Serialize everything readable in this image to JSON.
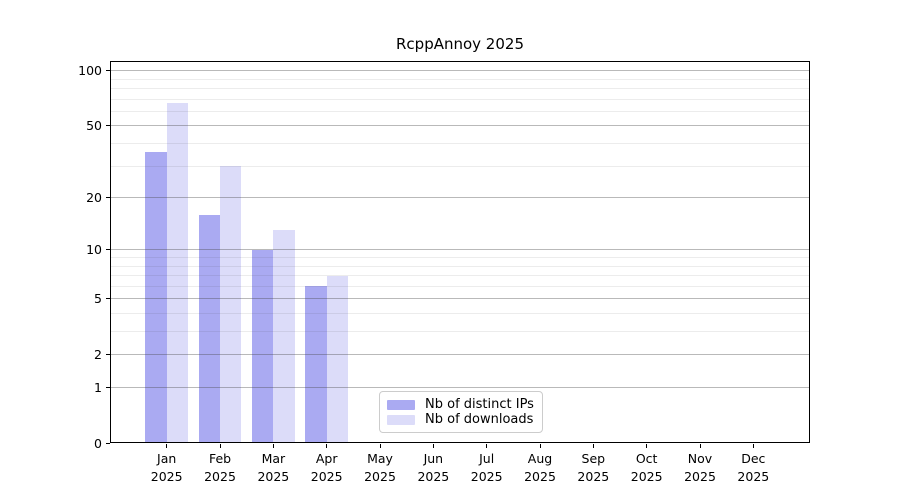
{
  "title": "RcppAnnoy 2025",
  "chart_data": {
    "type": "bar",
    "title": "RcppAnnoy 2025",
    "y_scale": "log1p",
    "categories": [
      "Jan 2025",
      "Feb 2025",
      "Mar 2025",
      "Apr 2025",
      "May 2025",
      "Jun 2025",
      "Jul 2025",
      "Aug 2025",
      "Sep 2025",
      "Oct 2025",
      "Nov 2025",
      "Dec 2025"
    ],
    "series": [
      {
        "name": "Nb of distinct IPs",
        "color": "#aaaaf2",
        "values": [
          36,
          16,
          10,
          6,
          null,
          null,
          null,
          null,
          null,
          null,
          null,
          null
        ]
      },
      {
        "name": "Nb of downloads",
        "color": "#dcdcf9",
        "values": [
          67,
          30,
          13,
          7,
          null,
          null,
          null,
          null,
          null,
          null,
          null,
          null
        ]
      }
    ],
    "y_ticks": [
      100,
      50,
      20,
      10,
      5,
      2,
      1,
      0
    ],
    "y_minor_gridlines": [
      3,
      4,
      6,
      7,
      8,
      9,
      30,
      40,
      60,
      70,
      80,
      90
    ],
    "ylim": [
      0,
      113
    ],
    "xlabel": "",
    "ylabel": "",
    "grid": "on",
    "legend_position": "lower center"
  },
  "colors": {
    "major_grid": "#bdbdbd",
    "minor_grid": "#e9e9e9",
    "axis": "#000000",
    "background": "#ffffff"
  }
}
